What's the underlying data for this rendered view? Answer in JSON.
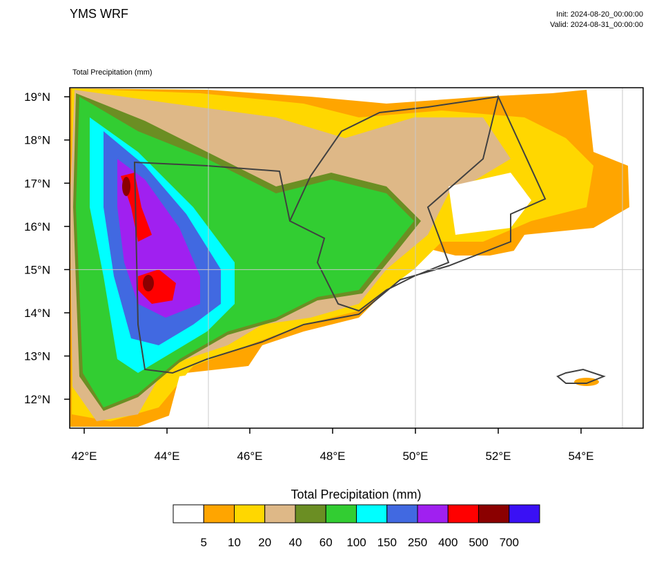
{
  "header": {
    "title": "YMS WRF",
    "init": "Init: 2024-08-20_00:00:00",
    "valid": "Valid: 2024-08-31_00:00:00"
  },
  "map": {
    "label": "Total Precipitation   (mm)",
    "xlim": [
      41.65,
      55.5
    ],
    "ylim": [
      11.33,
      19.21
    ],
    "xticks": [
      {
        "value": 42,
        "label": "42°E"
      },
      {
        "value": 44,
        "label": "44°E"
      },
      {
        "value": 46,
        "label": "46°E"
      },
      {
        "value": 48,
        "label": "48°E"
      },
      {
        "value": 50,
        "label": "50°E"
      },
      {
        "value": 52,
        "label": "52°E"
      },
      {
        "value": 54,
        "label": "54°E"
      }
    ],
    "yticks": [
      {
        "value": 12,
        "label": "12°N"
      },
      {
        "value": 13,
        "label": "13°N"
      },
      {
        "value": 14,
        "label": "14°N"
      },
      {
        "value": 15,
        "label": "15°N"
      },
      {
        "value": 16,
        "label": "16°N"
      },
      {
        "value": 17,
        "label": "17°N"
      },
      {
        "value": 18,
        "label": "18°N"
      },
      {
        "value": 19,
        "label": "19°N"
      }
    ],
    "grid_x": [
      45,
      50,
      55
    ],
    "grid_y": [
      15
    ]
  },
  "colorbar": {
    "title": "Total Precipitation  (mm)",
    "levels": [
      5,
      10,
      20,
      40,
      60,
      100,
      150,
      250,
      400,
      500,
      700
    ],
    "colors": [
      "#ffffff",
      "#ffa500",
      "#ffd700",
      "#deb887",
      "#6b8e23",
      "#32cd32",
      "#00ffff",
      "#4169e1",
      "#a020f0",
      "#ff0000",
      "#8b0000",
      "#3a10f5"
    ]
  }
}
